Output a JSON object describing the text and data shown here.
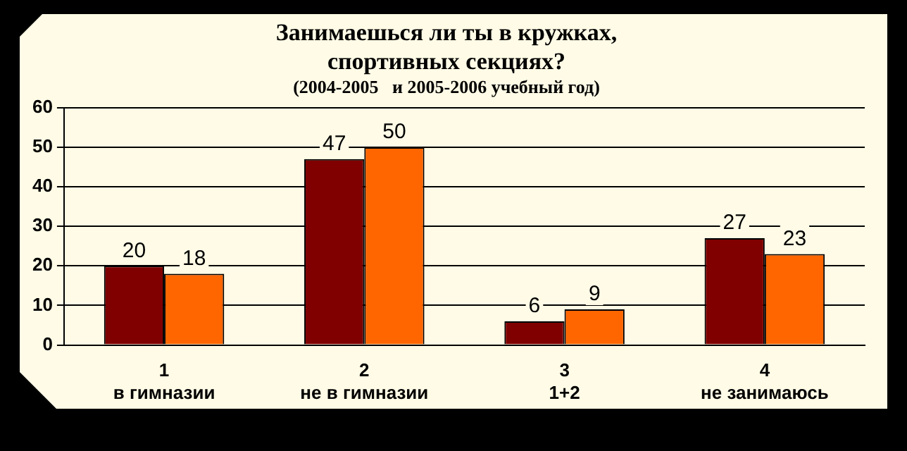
{
  "chart_data": {
    "type": "bar",
    "title": "Занимаешься ли ты в кружках,\nспортивных секциях?",
    "subtitle": "(2004-2005   и 2005-2006 учебный год)",
    "categories": [
      "1\nв гимназии",
      "2\nне в гимназии",
      "3\n1+2",
      "4\nне занимаюсь"
    ],
    "series": [
      {
        "color": "#800000",
        "values": [
          20,
          47,
          6,
          27
        ]
      },
      {
        "color": "#ff6600",
        "values": [
          18,
          50,
          9,
          23
        ]
      }
    ],
    "ylim": [
      0,
      60
    ],
    "yticks": [
      0,
      10,
      20,
      30,
      40,
      50,
      60
    ],
    "grid": "y",
    "legend": false,
    "data_labels": true
  }
}
